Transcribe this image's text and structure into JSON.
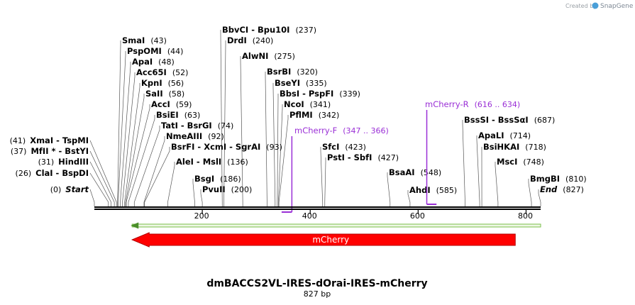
{
  "header": {
    "credit": "Created by",
    "brand": "SnapGene",
    "brand_color": "#4a9fd8"
  },
  "sequence": {
    "name": "dmBACCS2VL-IRES-dOrai-IRES-mCherry",
    "length_label": "827 bp",
    "length": 827
  },
  "axis": {
    "ticks": [
      {
        "value": 200,
        "label": "200"
      },
      {
        "value": 400,
        "label": "400"
      },
      {
        "value": 600,
        "label": "600"
      },
      {
        "value": 800,
        "label": "800"
      }
    ]
  },
  "sites_left": [
    {
      "name": "Start",
      "pos": "(0)",
      "coord": 0,
      "italic": true
    },
    {
      "name": "ClaI  -  BspDI",
      "pos": "(26)",
      "coord": 26
    },
    {
      "name": "HindIII",
      "pos": "(31)",
      "coord": 31
    },
    {
      "name": "MfII * -  BstYI",
      "pos": "(37)",
      "coord": 37
    },
    {
      "name": "XmaI  -  TspMI",
      "pos": "(41)",
      "coord": 41
    }
  ],
  "sites_right": [
    {
      "name": "SmaI",
      "pos": "(43)",
      "coord": 43
    },
    {
      "name": "PspOMI",
      "pos": "(44)",
      "coord": 44
    },
    {
      "name": "ApaI",
      "pos": "(48)",
      "coord": 48
    },
    {
      "name": "Acc65I",
      "pos": "(52)",
      "coord": 52
    },
    {
      "name": "KpnI",
      "pos": "(56)",
      "coord": 56
    },
    {
      "name": "SaII",
      "pos": "(58)",
      "coord": 58
    },
    {
      "name": "AccI",
      "pos": "(59)",
      "coord": 59
    },
    {
      "name": "BsiEI",
      "pos": "(63)",
      "coord": 63
    },
    {
      "name": "TatI  -  BsrGI",
      "pos": "(74)",
      "coord": 74
    },
    {
      "name": "NmeAIII",
      "pos": "(92)",
      "coord": 92
    },
    {
      "name": "BsrFI  -  XcmI  -  SgrAI",
      "pos": "(93)",
      "coord": 93
    },
    {
      "name": "AleI  -  MslI",
      "pos": "(136)",
      "coord": 136
    },
    {
      "name": "BsgI",
      "pos": "(186)",
      "coord": 186
    },
    {
      "name": "PvuII",
      "pos": "(200)",
      "coord": 200
    },
    {
      "name": "BbvCI  -  Bpu10I",
      "pos": "(237)",
      "coord": 237
    },
    {
      "name": "DrdI",
      "pos": "(240)",
      "coord": 240
    },
    {
      "name": "AlwNI",
      "pos": "(275)",
      "coord": 275
    },
    {
      "name": "BsrBI",
      "pos": "(320)",
      "coord": 320
    },
    {
      "name": "BseYI",
      "pos": "(335)",
      "coord": 335
    },
    {
      "name": "BbsI  -  PspFI",
      "pos": "(339)",
      "coord": 339
    },
    {
      "name": "NcoI",
      "pos": "(341)",
      "coord": 341
    },
    {
      "name": "PflMI",
      "pos": "(342)",
      "coord": 342
    },
    {
      "name": "SfcI",
      "pos": "(423)",
      "coord": 423
    },
    {
      "name": "PstI  -  SbfI",
      "pos": "(427)",
      "coord": 427
    },
    {
      "name": "BsaAI",
      "pos": "(548)",
      "coord": 548
    },
    {
      "name": "AhdI",
      "pos": "(585)",
      "coord": 585
    },
    {
      "name": "BssSI  -  BssSαI",
      "pos": "(687)",
      "coord": 687
    },
    {
      "name": "ApaLI",
      "pos": "(714)",
      "coord": 714
    },
    {
      "name": "BsiHKAI",
      "pos": "(718)",
      "coord": 718
    },
    {
      "name": "MscI",
      "pos": "(748)",
      "coord": 748
    },
    {
      "name": "BmgBI",
      "pos": "(810)",
      "coord": 810
    },
    {
      "name": "End",
      "pos": "(827)",
      "coord": 827,
      "italic": true
    }
  ],
  "primers": [
    {
      "name": "mCherry-F",
      "range": "(347 .. 366)",
      "start": 347,
      "end": 366
    },
    {
      "name": "mCherry-R",
      "range": "(616 .. 634)",
      "start": 616,
      "end": 634
    }
  ],
  "features": [
    {
      "name": "mCherry",
      "start": 70,
      "end": 780,
      "direction": "reverse",
      "color": "#ff0000",
      "border": "#b30000"
    }
  ],
  "orf": {
    "start": 70,
    "end": 827,
    "direction": "reverse",
    "color": "#7bbf4a",
    "fill": "#eef7e4"
  },
  "colors": {
    "primer": "#9a2fd6",
    "line": "#000000"
  }
}
